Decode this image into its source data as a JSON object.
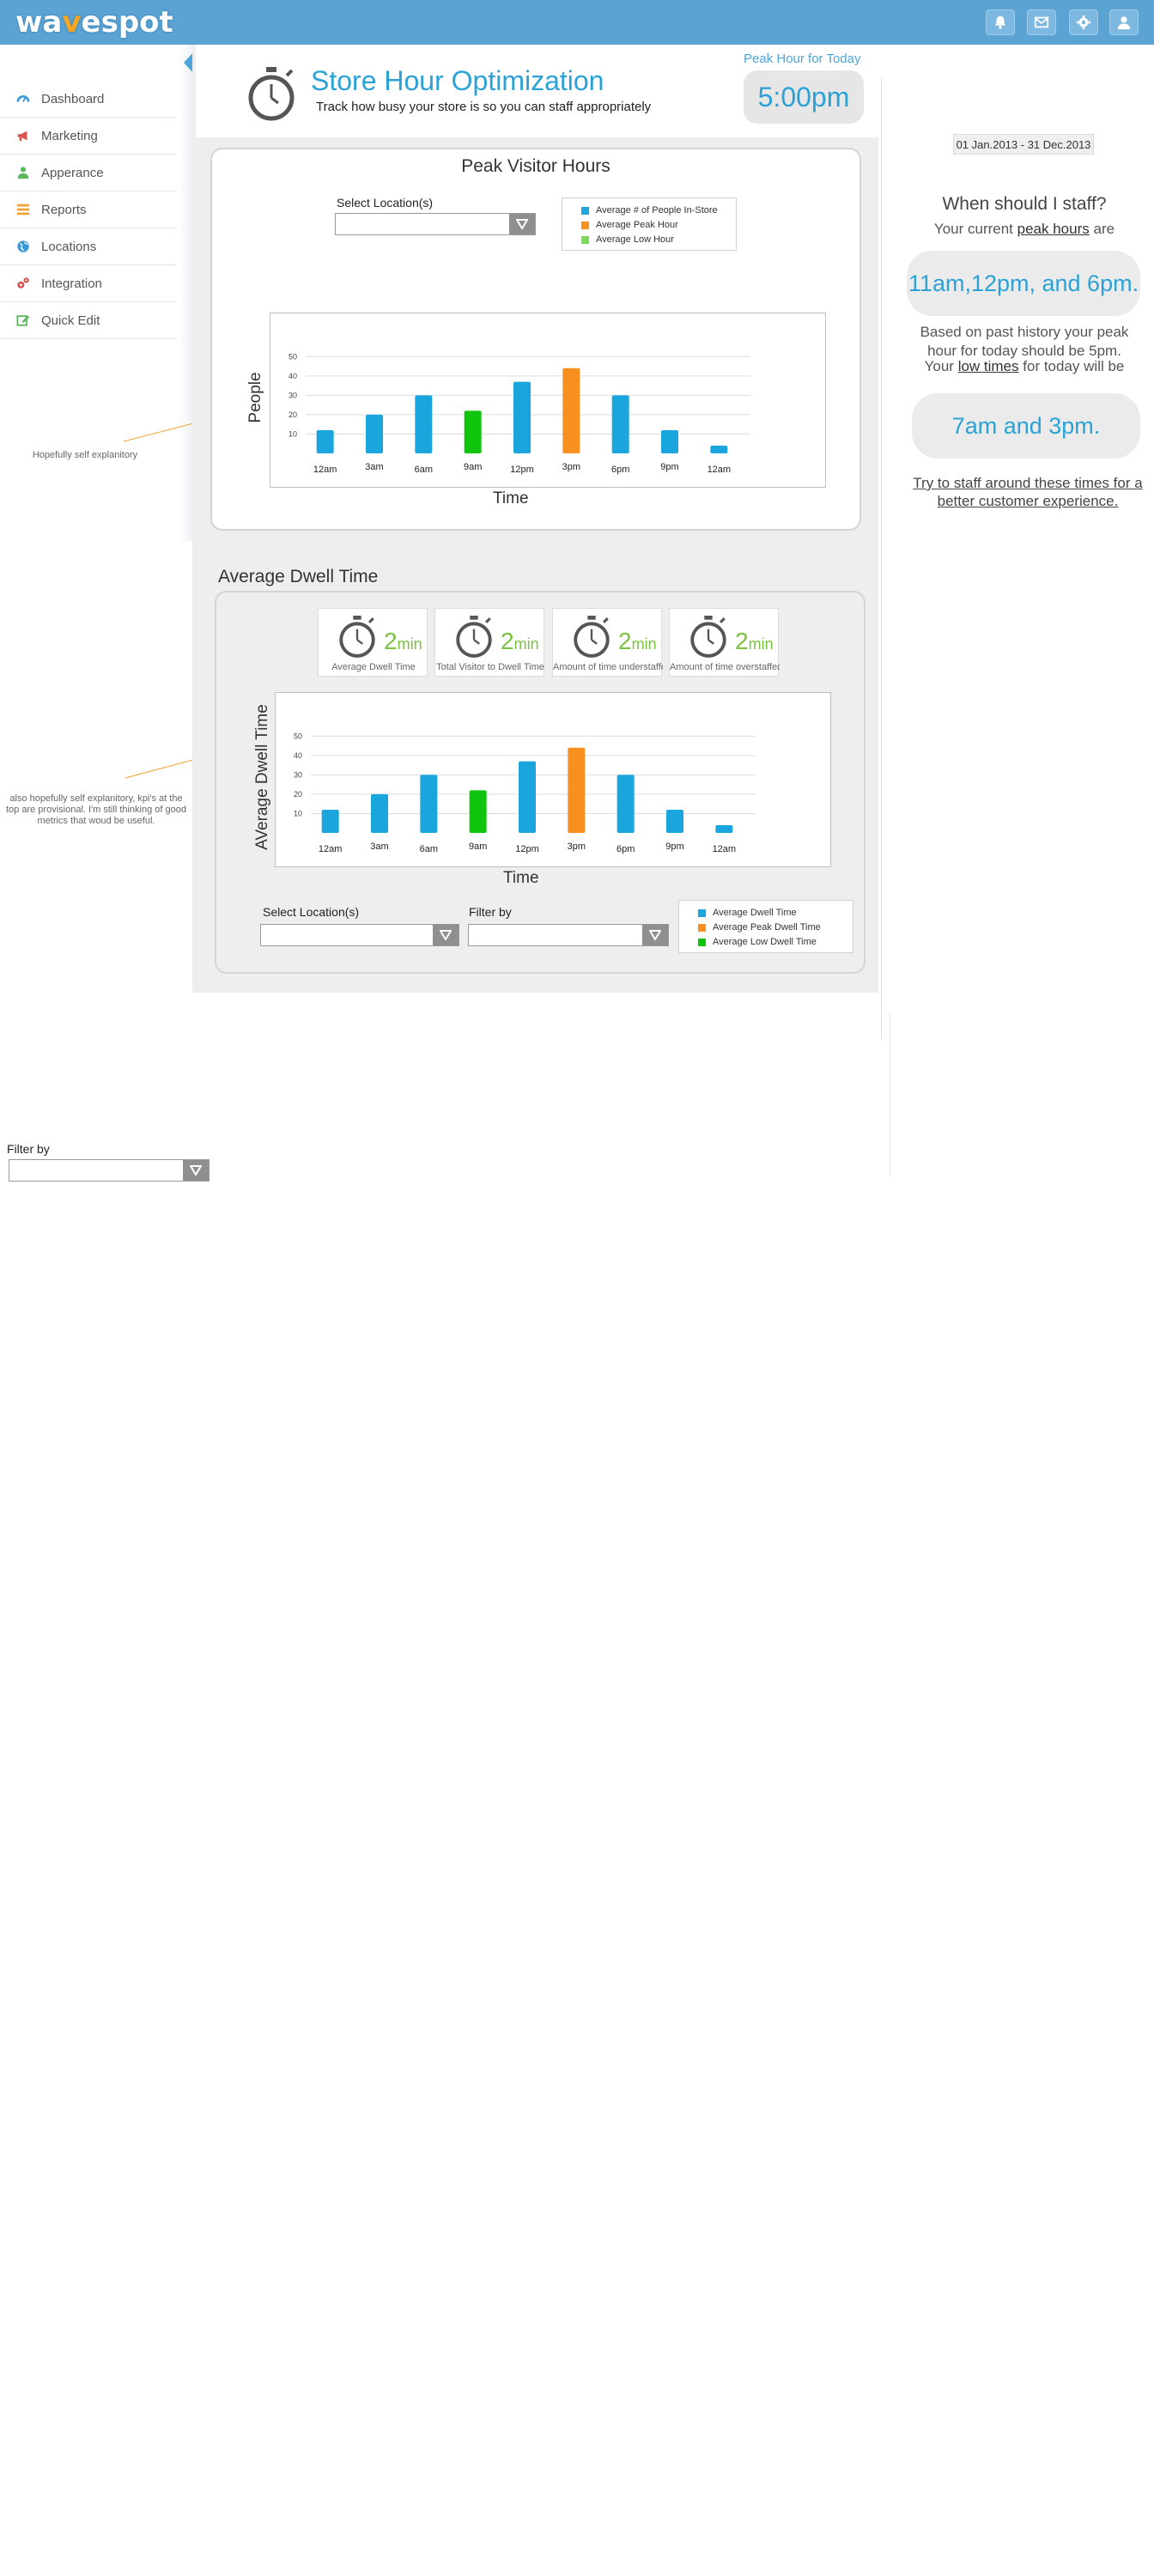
{
  "brand": {
    "logo_left": "wa",
    "logo_accent": "v",
    "logo_right": "espot"
  },
  "topbar": {
    "icons": [
      {
        "name": "bell-icon"
      },
      {
        "name": "mail-icon"
      },
      {
        "name": "gear-icon"
      },
      {
        "name": "user-icon"
      }
    ]
  },
  "sidebar": {
    "items": [
      {
        "label": "Dashboard",
        "icon": "dashboard-icon",
        "color": "#3b9ad6"
      },
      {
        "label": "Marketing",
        "icon": "megaphone-icon",
        "color": "#d9534f"
      },
      {
        "label": "Apperance",
        "icon": "person-icon",
        "color": "#5cb85c"
      },
      {
        "label": "Reports",
        "icon": "reports-icon",
        "color": "#f0a030"
      },
      {
        "label": "Locations",
        "icon": "globe-icon",
        "color": "#3b9ad6"
      },
      {
        "label": "Integration",
        "icon": "gears-icon",
        "color": "#d9534f"
      },
      {
        "label": "Quick Edit",
        "icon": "edit-icon",
        "color": "#5cb85c"
      }
    ]
  },
  "annotations": {
    "note1": "Hopefully self explanitory",
    "note2": "also hopefully self explanitory, kpi's at the top are provisional. I'm still thinking of good metrics that woud be useful."
  },
  "header": {
    "title": "Store Hour Optimization",
    "subtitle": "Track how busy your store is so you can staff appropriately",
    "peak_label": "Peak Hour for Today",
    "peak_value": "5:00pm"
  },
  "peak_panel": {
    "title": "Peak Visitor Hours",
    "location_label": "Select Location(s)",
    "legend": [
      {
        "label": "Average # of People In-Store",
        "color": "#1aa6dd"
      },
      {
        "label": "Average Peak Hour",
        "color": "#f7901e"
      },
      {
        "label": "Average Low Hour",
        "color": "#7ed957"
      }
    ]
  },
  "dwell_panel": {
    "title": "Average Dwell Time",
    "kpis": [
      {
        "value": "2",
        "unit": "min",
        "label": "Average Dwell Time"
      },
      {
        "value": "2",
        "unit": "min",
        "label": "Total Visitor to Dwell Time"
      },
      {
        "value": "2",
        "unit": "min",
        "label": "Amount of time understaffed"
      },
      {
        "value": "2",
        "unit": "min",
        "label": "Amount of time overstaffed"
      }
    ],
    "location_label": "Select Location(s)",
    "filter_label": "Filter by",
    "legend": [
      {
        "label": "Average Dwell Time",
        "color": "#1aa6dd"
      },
      {
        "label": "Average Peak Dwell Time",
        "color": "#f7901e"
      },
      {
        "label": "Average Low Dwell Time",
        "color": "#11c40e"
      }
    ]
  },
  "stray_filter": {
    "label": "Filter by"
  },
  "right_panel": {
    "date_range": "01 Jan.2013 - 31 Dec.2013",
    "question": "When should I staff?",
    "peak_intro_pre": "Your current ",
    "peak_intro_link": "peak hours",
    "peak_intro_post": " are",
    "peak_hours": "11am,12pm, and 6pm.",
    "history_line1": "Based on past history your peak",
    "history_line2": "hour for today should be 5pm.",
    "low_pre": "Your ",
    "low_link": "low times",
    "low_post": " for today will be",
    "low_times": "7am and 3pm.",
    "cta": "Try to staff around these times for a better customer experience."
  },
  "chart_data": [
    {
      "type": "bar",
      "title": "Peak Visitor Hours",
      "xlabel": "Time",
      "ylabel": "People",
      "categories": [
        "12am",
        "3am",
        "6am",
        "9am",
        "12pm",
        "3pm",
        "6pm",
        "9pm",
        "12am"
      ],
      "values": [
        12,
        20,
        30,
        22,
        37,
        44,
        30,
        12,
        4
      ],
      "bar_colors": [
        "#1aa6dd",
        "#1aa6dd",
        "#1aa6dd",
        "#11c40e",
        "#1aa6dd",
        "#f7901e",
        "#1aa6dd",
        "#1aa6dd",
        "#1aa6dd"
      ],
      "yticks": [
        10,
        20,
        30,
        40,
        50
      ],
      "ylim": [
        0,
        55
      ],
      "grid": true
    },
    {
      "type": "bar",
      "title": "Average Dwell Time",
      "xlabel": "Time",
      "ylabel": "AVerage Dwell Time",
      "categories": [
        "12am",
        "3am",
        "6am",
        "9am",
        "12pm",
        "3pm",
        "6pm",
        "9pm",
        "12am"
      ],
      "values": [
        12,
        20,
        30,
        22,
        37,
        44,
        30,
        12,
        4
      ],
      "bar_colors": [
        "#1aa6dd",
        "#1aa6dd",
        "#1aa6dd",
        "#11c40e",
        "#1aa6dd",
        "#f7901e",
        "#1aa6dd",
        "#1aa6dd",
        "#1aa6dd"
      ],
      "yticks": [
        10,
        20,
        30,
        40,
        50
      ],
      "ylim": [
        0,
        55
      ],
      "grid": true
    }
  ]
}
